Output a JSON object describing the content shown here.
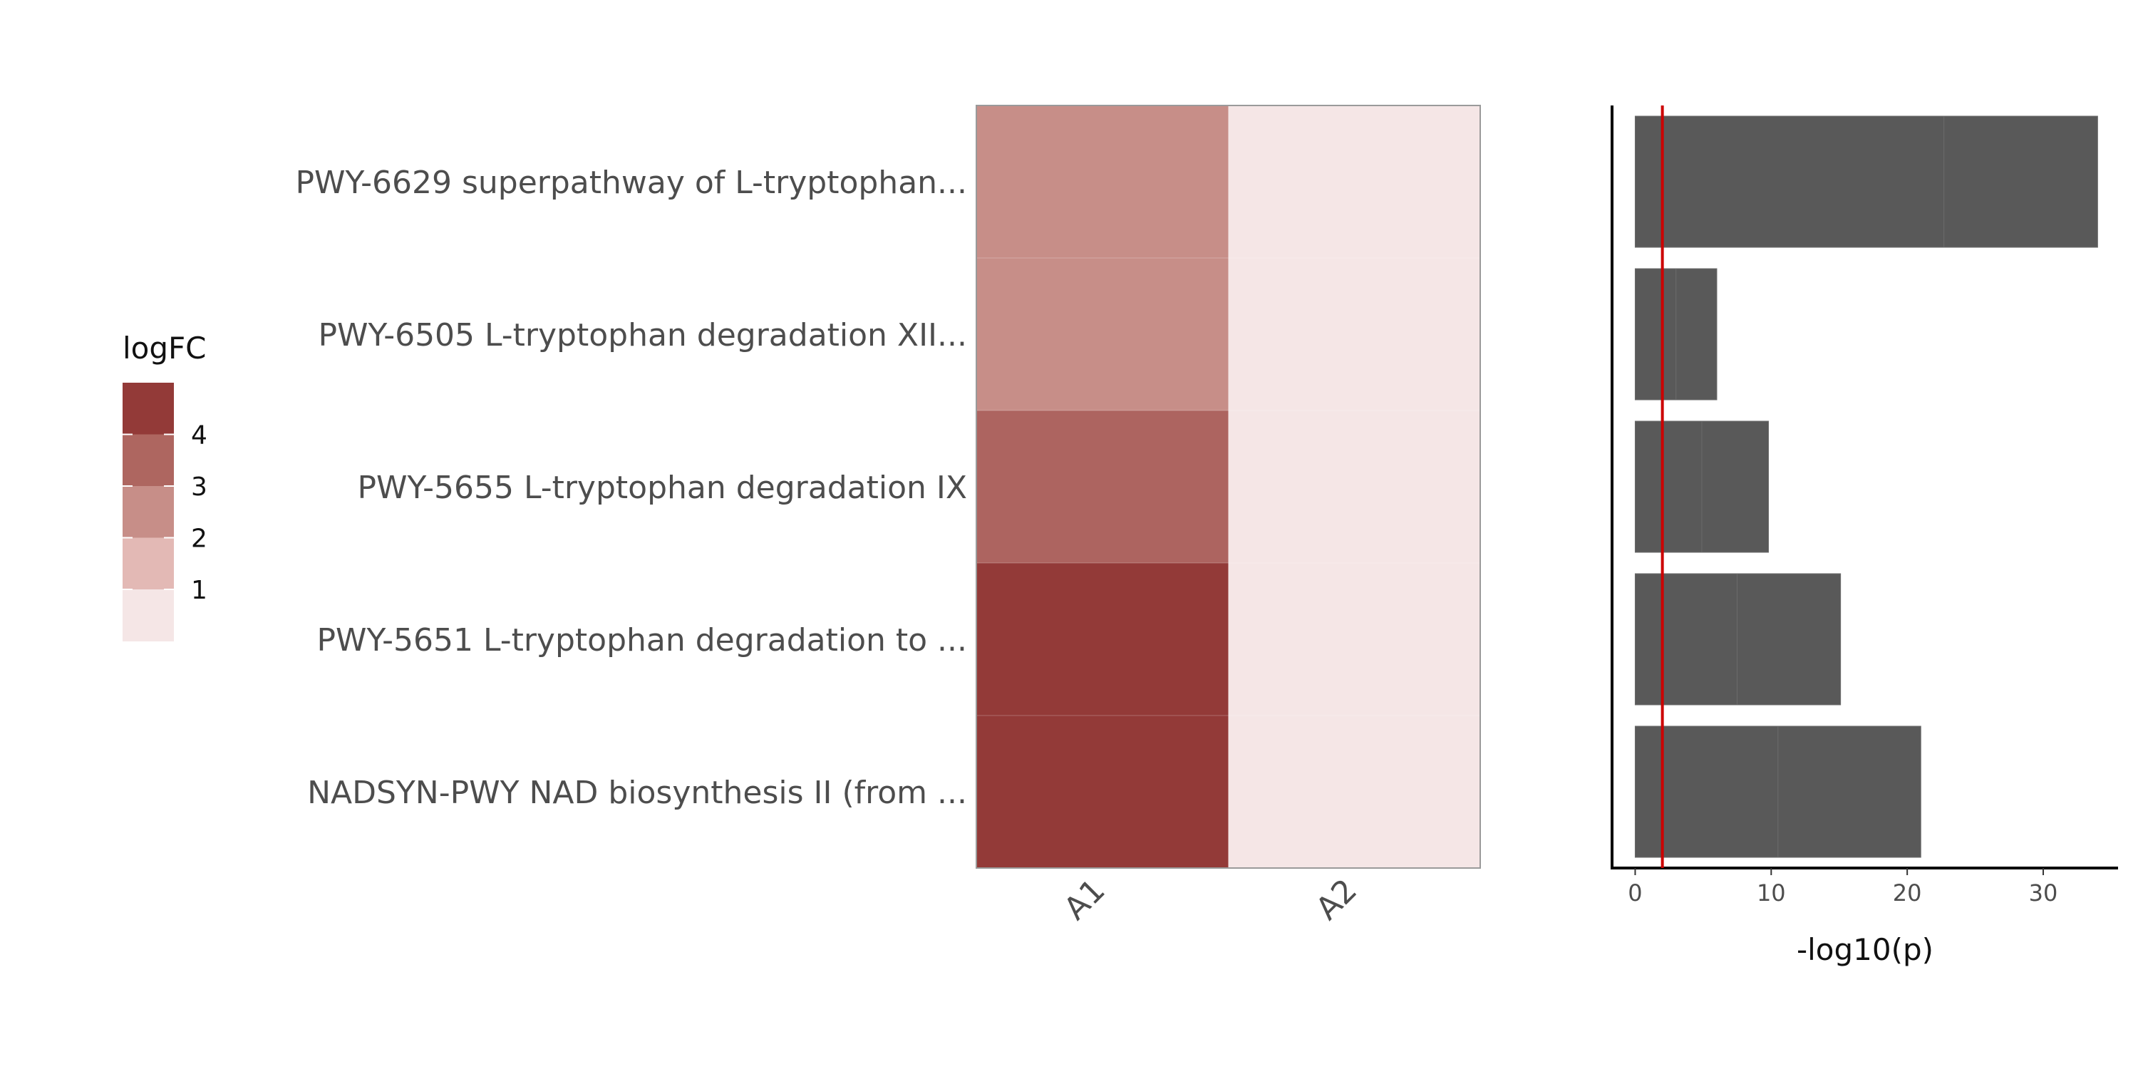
{
  "chart_data": [
    {
      "type": "heatmap",
      "rows": [
        "PWY-6629 superpathway of L-tryptophan...",
        "PWY-6505 L-tryptophan degradation XII...",
        "PWY-5655 L-tryptophan degradation IX",
        "PWY-5651 L-tryptophan degradation to ...",
        "NADSYN-PWY NAD biosynthesis II (from ..."
      ],
      "columns": [
        "A1",
        "A2"
      ],
      "values": [
        [
          2.5,
          0.5
        ],
        [
          2.5,
          0.5
        ],
        [
          3.5,
          0.5
        ],
        [
          4.5,
          0.5
        ],
        [
          4.5,
          0.5
        ]
      ],
      "legend": {
        "title": "logFC",
        "ticks": [
          "4",
          "3",
          "2",
          "1"
        ],
        "bins": [
          {
            "color": "#933a38"
          },
          {
            "color": "#ae6660"
          },
          {
            "color": "#c78e88"
          },
          {
            "color": "#e3b9b5"
          },
          {
            "color": "#f5e6e6"
          }
        ]
      },
      "colors": {
        "low": "#f5e6e6",
        "mid": "#c78e88",
        "high": "#933a38",
        "frame": "#9a9a9a"
      }
    },
    {
      "type": "bar",
      "orientation": "horizontal",
      "categories": [
        "PWY-6629 superpathway of L-tryptophan...",
        "PWY-6505 L-tryptophan degradation XII...",
        "PWY-5655 L-tryptophan degradation IX",
        "PWY-5651 L-tryptophan degradation to ...",
        "NADSYN-PWY NAD biosynthesis II (from ..."
      ],
      "series": [
        {
          "values": [
            22.7,
            3.0,
            4.9,
            7.5,
            10.5
          ]
        },
        {
          "values": [
            11.3,
            3.0,
            4.9,
            7.6,
            10.5
          ]
        }
      ],
      "xlabel": "-log10(p)",
      "xlim": [
        -1.7,
        35.5
      ],
      "xticks": [
        0,
        10,
        20,
        30
      ],
      "threshold": {
        "value": 2,
        "color": "#cc0000"
      },
      "bar_color": "#595959"
    }
  ]
}
